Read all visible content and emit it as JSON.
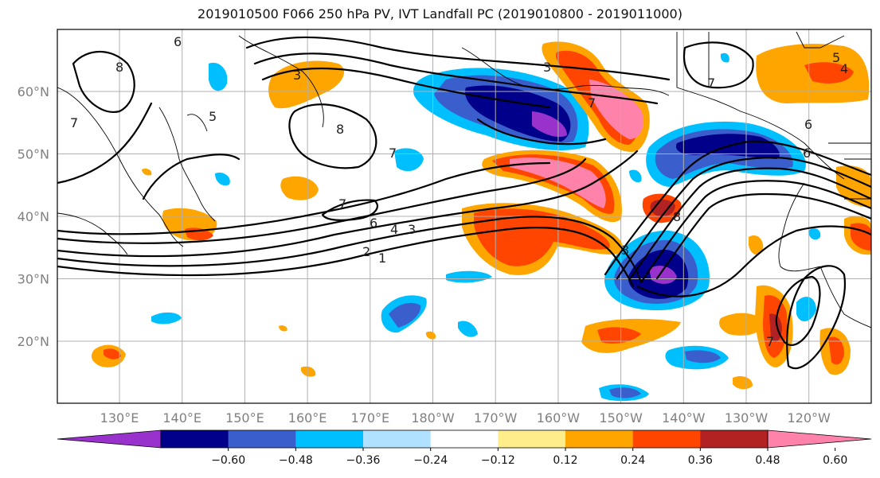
{
  "title": "2019010500 F066 250 hPa PV, IVT Landfall PC (2019010800 - 2019011000)",
  "lat_ticks": [
    {
      "label": "60°N",
      "lat": 60
    },
    {
      "label": "50°N",
      "lat": 50
    },
    {
      "label": "40°N",
      "lat": 40
    },
    {
      "label": "30°N",
      "lat": 30
    },
    {
      "label": "20°N",
      "lat": 20
    }
  ],
  "lon_ticks": [
    {
      "label": "130°E",
      "lon": 130
    },
    {
      "label": "140°E",
      "lon": 140
    },
    {
      "label": "150°E",
      "lon": 150
    },
    {
      "label": "160°E",
      "lon": 160
    },
    {
      "label": "170°E",
      "lon": 170
    },
    {
      "label": "180°W",
      "lon": 180
    },
    {
      "label": "170°W",
      "lon": 190
    },
    {
      "label": "160°W",
      "lon": 200
    },
    {
      "label": "150°W",
      "lon": 210
    },
    {
      "label": "140°W",
      "lon": 220
    },
    {
      "label": "130°W",
      "lon": 230
    },
    {
      "label": "120°W",
      "lon": 240
    }
  ],
  "colorbar": {
    "colors": [
      "#9932cc",
      "#00008b",
      "#3a5fcd",
      "#00bfff",
      "#b0e2ff",
      "#ffffff",
      "#ffec8b",
      "#ffa500",
      "#ff4500",
      "#b22222",
      "#ff82ab"
    ],
    "labels": [
      "-0.60",
      "-0.48",
      "-0.36",
      "-0.24",
      "-0.12",
      "0.12",
      "0.24",
      "0.36",
      "0.48",
      "0.60"
    ]
  },
  "contour_labels": [
    {
      "text": "6"
    },
    {
      "text": "8"
    },
    {
      "text": "7"
    },
    {
      "text": "3"
    },
    {
      "text": "5"
    },
    {
      "text": "8"
    },
    {
      "text": "7"
    },
    {
      "text": "7"
    },
    {
      "text": "6"
    },
    {
      "text": "4"
    },
    {
      "text": "3"
    },
    {
      "text": "2"
    },
    {
      "text": "1"
    },
    {
      "text": "3"
    },
    {
      "text": "7"
    },
    {
      "text": "6"
    },
    {
      "text": "8"
    },
    {
      "text": "5"
    },
    {
      "text": "4"
    },
    {
      "text": "6"
    },
    {
      "text": "7"
    },
    {
      "text": "3"
    },
    {
      "text": "7"
    }
  ]
}
